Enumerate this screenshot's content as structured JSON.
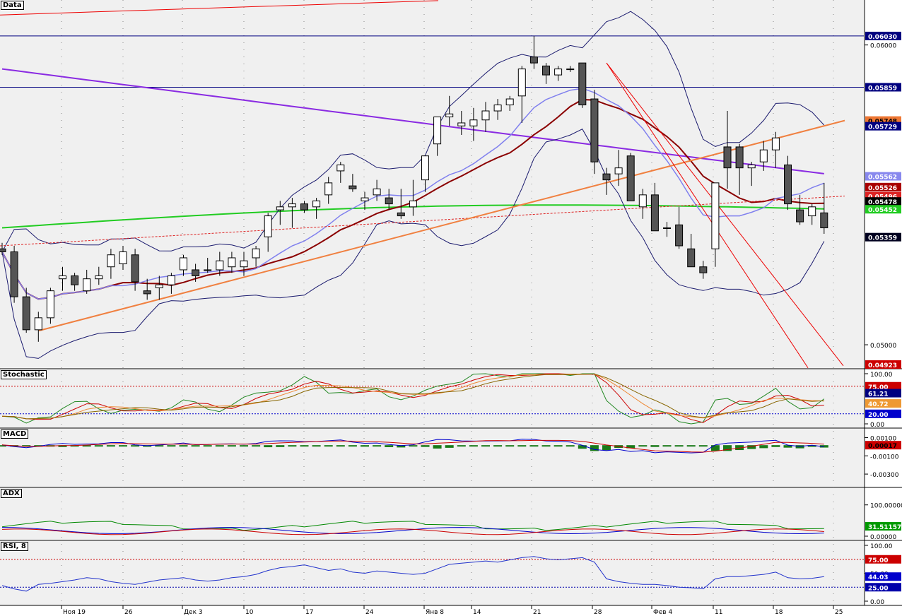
{
  "panels": {
    "data": "Data",
    "stochastic": "Stochastic",
    "macd": "MACD",
    "adx": "ADX",
    "rsi": "RSI, 8"
  },
  "chart_data": {
    "type": "candlestick",
    "x_tick_labels": [
      "Ноя 19",
      "26",
      "Дек 3",
      "10",
      "17",
      "24",
      "Янв 8",
      "14",
      "21",
      "28",
      "Фев 4",
      "11",
      "18",
      "25"
    ],
    "price_axis": {
      "ylim": [
        0.0492,
        0.0615
      ],
      "ticks": [
        "0.06000",
        "0.05000"
      ],
      "tags": [
        {
          "label": "0.06030",
          "bg": "#000080",
          "fg": "#ffffff"
        },
        {
          "label": "0.05859",
          "bg": "#000080",
          "fg": "#ffffff"
        },
        {
          "label": "0.05748",
          "bg": "#ee7733",
          "fg": "#000000"
        },
        {
          "label": "0.05729",
          "bg": "#000080",
          "fg": "#ffffff"
        },
        {
          "label": "0.05562",
          "bg": "#8888ee",
          "fg": "#ffffff"
        },
        {
          "label": "0.05526",
          "bg": "#aa0000",
          "fg": "#ffffff"
        },
        {
          "label": "0.05496",
          "bg": "#dd2222",
          "fg": "#ffffff"
        },
        {
          "label": "0.05478",
          "bg": "#000000",
          "fg": "#ffffff"
        },
        {
          "label": "0.05452",
          "bg": "#22cc22",
          "fg": "#ffffff"
        },
        {
          "label": "0.05359",
          "bg": "#000020",
          "fg": "#ffffff"
        },
        {
          "label": "0.04923",
          "bg": "#cc0000",
          "fg": "#ffffff"
        }
      ]
    },
    "candles_ohlc": [
      [
        0.0532,
        0.0534,
        0.053,
        0.0531
      ],
      [
        0.0531,
        0.0533,
        0.0514,
        0.0516
      ],
      [
        0.0516,
        0.0519,
        0.0504,
        0.0505
      ],
      [
        0.0505,
        0.0511,
        0.0501,
        0.0509
      ],
      [
        0.0509,
        0.0519,
        0.0507,
        0.0518
      ],
      [
        0.0522,
        0.0526,
        0.0518,
        0.0523
      ],
      [
        0.0523,
        0.0524,
        0.0518,
        0.052
      ],
      [
        0.0518,
        0.0525,
        0.0517,
        0.0522
      ],
      [
        0.0522,
        0.0526,
        0.052,
        0.0523
      ],
      [
        0.0526,
        0.0532,
        0.0522,
        0.053
      ],
      [
        0.0527,
        0.0533,
        0.0525,
        0.0531
      ],
      [
        0.053,
        0.0532,
        0.0518,
        0.0521
      ],
      [
        0.0518,
        0.0522,
        0.0515,
        0.0517
      ],
      [
        0.0519,
        0.0523,
        0.0515,
        0.052
      ],
      [
        0.052,
        0.0524,
        0.0517,
        0.0523
      ],
      [
        0.0525,
        0.053,
        0.0523,
        0.0529
      ],
      [
        0.0525,
        0.0527,
        0.0521,
        0.0523
      ],
      [
        0.0525,
        0.0529,
        0.0524,
        0.0525
      ],
      [
        0.0525,
        0.0531,
        0.0523,
        0.0528
      ],
      [
        0.0526,
        0.0531,
        0.0524,
        0.0529
      ],
      [
        0.0526,
        0.0531,
        0.0523,
        0.0528
      ],
      [
        0.0529,
        0.0533,
        0.0526,
        0.0532
      ],
      [
        0.0536,
        0.0544,
        0.0531,
        0.0543
      ],
      [
        0.0545,
        0.0548,
        0.054,
        0.0546
      ],
      [
        0.0546,
        0.0549,
        0.0539,
        0.0547
      ],
      [
        0.0547,
        0.0548,
        0.0544,
        0.0545
      ],
      [
        0.0546,
        0.0549,
        0.0542,
        0.0548
      ],
      [
        0.055,
        0.0556,
        0.0547,
        0.0554
      ],
      [
        0.0558,
        0.0561,
        0.0554,
        0.056
      ],
      [
        0.0553,
        0.0557,
        0.0551,
        0.0552
      ],
      [
        0.0548,
        0.0551,
        0.0545,
        0.0549
      ],
      [
        0.055,
        0.0555,
        0.0548,
        0.0552
      ],
      [
        0.0549,
        0.0552,
        0.0545,
        0.0547
      ],
      [
        0.0544,
        0.0552,
        0.0542,
        0.0543
      ],
      [
        0.0546,
        0.0555,
        0.0543,
        0.0548
      ],
      [
        0.0555,
        0.0561,
        0.0551,
        0.0563
      ],
      [
        0.0567,
        0.0575,
        0.0563,
        0.0576
      ],
      [
        0.0576,
        0.0583,
        0.0573,
        0.0577
      ],
      [
        0.0573,
        0.0578,
        0.057,
        0.0574
      ],
      [
        0.0573,
        0.0579,
        0.0568,
        0.0575
      ],
      [
        0.0575,
        0.0581,
        0.0571,
        0.0578
      ],
      [
        0.0578,
        0.0582,
        0.0575,
        0.058
      ],
      [
        0.058,
        0.0583,
        0.0578,
        0.0582
      ],
      [
        0.0583,
        0.0593,
        0.0574,
        0.0592
      ],
      [
        0.0596,
        0.0603,
        0.0592,
        0.0594
      ],
      [
        0.0593,
        0.0594,
        0.0587,
        0.059
      ],
      [
        0.059,
        0.0593,
        0.0588,
        0.0592
      ],
      [
        0.0592,
        0.0593,
        0.0591,
        0.0592
      ],
      [
        0.0594,
        0.0594,
        0.0579,
        0.058
      ],
      [
        0.0582,
        0.0585,
        0.0557,
        0.0561
      ],
      [
        0.0557,
        0.0559,
        0.055,
        0.0555
      ],
      [
        0.0557,
        0.0565,
        0.0553,
        0.0559
      ],
      [
        0.0563,
        0.0564,
        0.0552,
        0.0548
      ],
      [
        0.0546,
        0.0552,
        0.0542,
        0.055
      ],
      [
        0.055,
        0.0554,
        0.054,
        0.0538
      ],
      [
        0.0539,
        0.0541,
        0.0536,
        0.0539
      ],
      [
        0.054,
        0.0546,
        0.0532,
        0.0533
      ],
      [
        0.0532,
        0.0537,
        0.0526,
        0.0526
      ],
      [
        0.0526,
        0.0528,
        0.0522,
        0.0524
      ],
      [
        0.0532,
        0.0552,
        0.0526,
        0.0554
      ],
      [
        0.0566,
        0.0578,
        0.0552,
        0.0559
      ],
      [
        0.0566,
        0.0567,
        0.055,
        0.0559
      ],
      [
        0.0559,
        0.0561,
        0.0553,
        0.056
      ],
      [
        0.0561,
        0.0568,
        0.0558,
        0.0565
      ],
      [
        0.0565,
        0.0571,
        0.0559,
        0.0569
      ],
      [
        0.056,
        0.0563,
        0.0545,
        0.0547
      ],
      [
        0.0545,
        0.055,
        0.054,
        0.0541
      ],
      [
        0.0543,
        0.0547,
        0.054,
        0.0546
      ],
      [
        0.0544,
        0.0554,
        0.0537,
        0.0539
      ]
    ],
    "indicator_axes": {
      "stochastic": {
        "ylim": [
          0,
          100
        ],
        "ticks": [
          "100.00",
          "0.00"
        ],
        "levels": [
          75,
          20
        ],
        "tags": [
          {
            "label": "75.00",
            "bg": "#cc0000",
            "fg": "#ffffff"
          },
          {
            "label": "61.21",
            "bg": "#000080",
            "fg": "#ffffff"
          },
          {
            "label": "40.72",
            "bg": "#ee9933",
            "fg": "#ffffff"
          },
          {
            "label": "20.00",
            "bg": "#0000cc",
            "fg": "#ffffff"
          }
        ]
      },
      "macd": {
        "ylim": [
          -0.004,
          0.0015
        ],
        "ticks": [
          "0.00100",
          "-0.00100",
          "-0.00300"
        ],
        "tags": [
          {
            "label": "0.00017",
            "bg": "#cc0000",
            "fg": "#000000"
          }
        ]
      },
      "adx": {
        "ylim": [
          0,
          140
        ],
        "ticks": [
          "100.00000",
          "0.00000"
        ],
        "tags": [
          {
            "label": "31.51157",
            "bg": "#009900",
            "fg": "#ffffff"
          }
        ]
      },
      "rsi": {
        "ylim": [
          0,
          100
        ],
        "ticks": [
          "100.00",
          "50.00",
          "0.00"
        ],
        "levels": [
          75,
          25
        ],
        "tags": [
          {
            "label": "75.00",
            "bg": "#cc0000",
            "fg": "#ffffff"
          },
          {
            "label": "44.03",
            "bg": "#0000cc",
            "fg": "#ffffff"
          },
          {
            "label": "25.00",
            "bg": "#0000aa",
            "fg": "#ffffff"
          }
        ]
      }
    },
    "rsi": [
      28,
      22,
      18,
      30,
      32,
      35,
      38,
      42,
      40,
      35,
      32,
      30,
      34,
      38,
      40,
      42,
      38,
      36,
      38,
      42,
      44,
      48,
      55,
      60,
      62,
      65,
      60,
      55,
      58,
      52,
      50,
      54,
      52,
      50,
      48,
      50,
      58,
      66,
      68,
      70,
      72,
      70,
      74,
      78,
      80,
      76,
      74,
      76,
      78,
      70,
      40,
      35,
      32,
      30,
      30,
      28,
      25,
      24,
      22,
      40,
      44,
      44,
      46,
      48,
      52,
      42,
      40,
      41,
      44
    ],
    "colors": {
      "candle_up": "#ffffff",
      "candle_down": "#555555",
      "bollinger": "#1a1a6e",
      "bollinger_mid": "#8080ee",
      "ma_dark_red": "#8b0000",
      "ma_purple": "#8a2be2",
      "ma_green": "#22cc22",
      "trend_orange": "#f08040",
      "trend_red": "#ee0000",
      "level_navy": "#000080"
    }
  }
}
